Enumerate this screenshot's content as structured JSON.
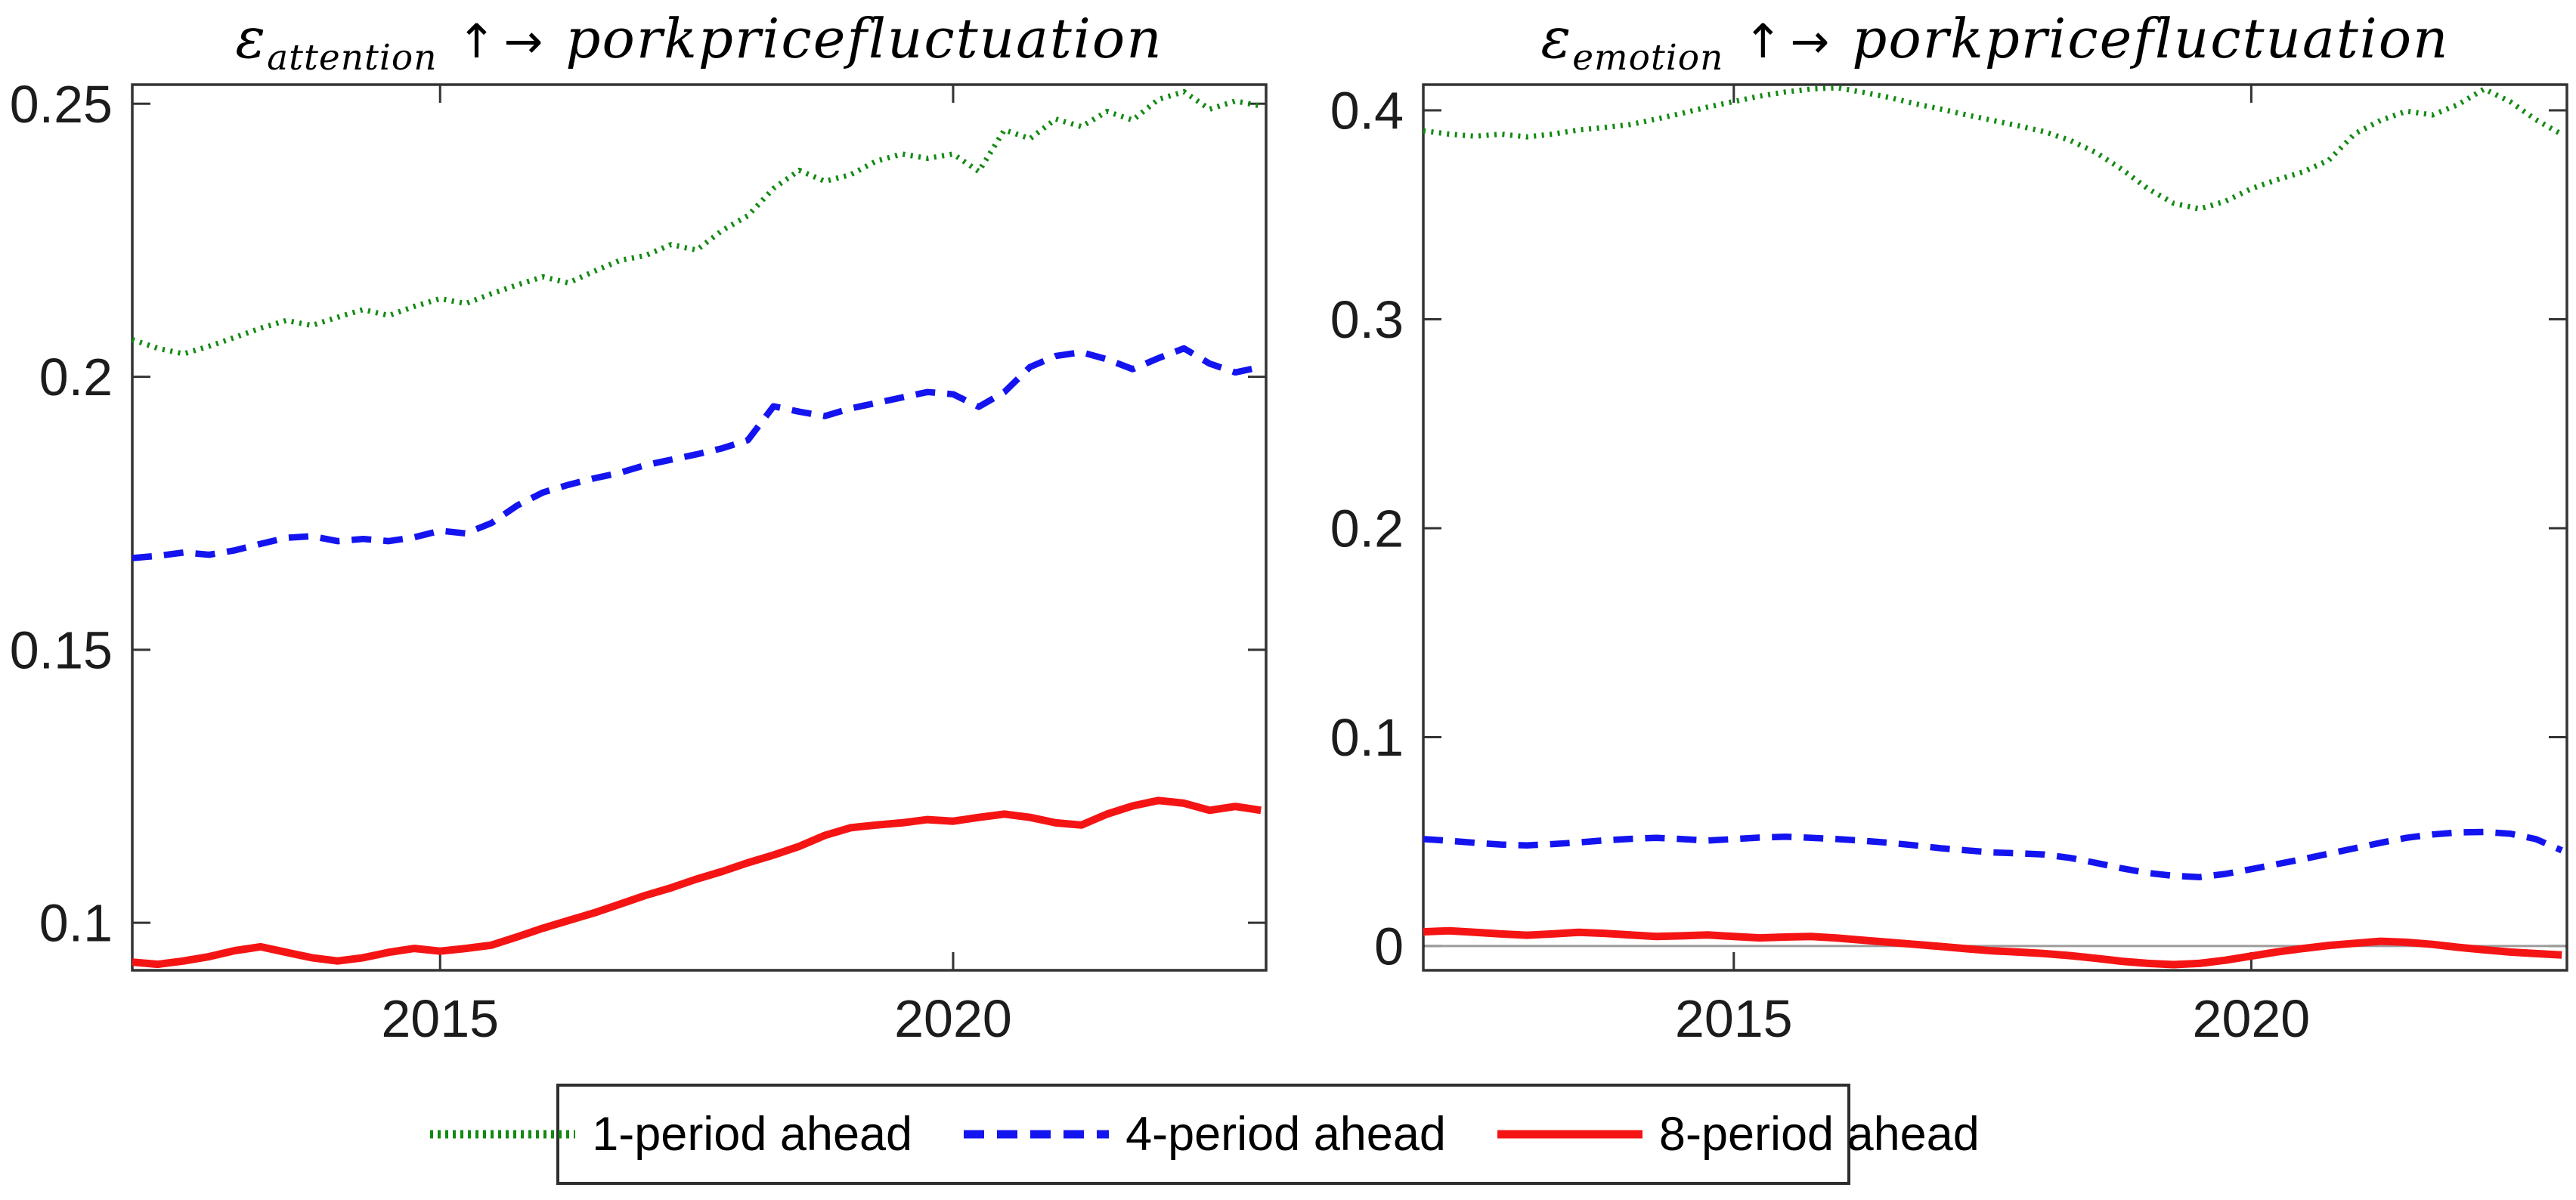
{
  "figure": {
    "background": "#ffffff",
    "axis_color": "#333333",
    "tick_label_color": "#1c1c1c",
    "zero_line_color": "#9c9c9c"
  },
  "legend": {
    "entries": [
      {
        "label": "1-period ahead",
        "color": "#128a12",
        "style": "dotted"
      },
      {
        "label": "4-period ahead",
        "color": "#1414f0",
        "style": "dashed"
      },
      {
        "label": "8-period ahead",
        "color": "#f51414",
        "style": "solid"
      }
    ]
  },
  "chart_data": [
    {
      "id": "attention",
      "type": "line",
      "title": {
        "symbol": "ε",
        "subscript": "attention",
        "arrow_up": "↑",
        "arrow_right": "→",
        "rest": "porkpricefluctuation"
      },
      "xlim": [
        2012,
        2023.05
      ],
      "ylim": [
        0.0913,
        0.2535
      ],
      "xticks": [
        2015,
        2020
      ],
      "xtick_labels": [
        "2015",
        "2020"
      ],
      "yticks": [
        0.1,
        0.15,
        0.2,
        0.25
      ],
      "ytick_labels": [
        "0.1",
        "0.15",
        "0.2",
        "0.25"
      ],
      "zero_line": false,
      "grid": false,
      "legend_position": "south-outside",
      "x": [
        2012,
        2012.25,
        2012.5,
        2012.75,
        2013,
        2013.25,
        2013.5,
        2013.75,
        2014,
        2014.25,
        2014.5,
        2014.75,
        2015,
        2015.25,
        2015.5,
        2015.75,
        2016,
        2016.25,
        2016.5,
        2016.75,
        2017,
        2017.25,
        2017.5,
        2017.75,
        2018,
        2018.25,
        2018.5,
        2018.75,
        2019,
        2019.25,
        2019.5,
        2019.75,
        2020,
        2020.25,
        2020.5,
        2020.75,
        2021,
        2021.25,
        2021.5,
        2021.75,
        2022,
        2022.25,
        2022.5,
        2022.75,
        2023
      ],
      "series": [
        {
          "name": "1-period ahead",
          "color": "#128a12",
          "style": "dotted",
          "values": [
            0.2068,
            0.2052,
            0.2042,
            0.2056,
            0.2072,
            0.2089,
            0.2103,
            0.2094,
            0.2109,
            0.2123,
            0.2112,
            0.2129,
            0.2143,
            0.2134,
            0.2152,
            0.2168,
            0.2183,
            0.2172,
            0.2193,
            0.2213,
            0.2222,
            0.2242,
            0.2232,
            0.2268,
            0.2295,
            0.2345,
            0.2378,
            0.2358,
            0.237,
            0.2395,
            0.2408,
            0.24,
            0.2408,
            0.2376,
            0.2452,
            0.2436,
            0.2472,
            0.2458,
            0.2486,
            0.247,
            0.2508,
            0.2522,
            0.249,
            0.2505,
            0.2496
          ]
        },
        {
          "name": "4-period ahead",
          "color": "#1414f0",
          "style": "dashed",
          "values": [
            0.1668,
            0.1672,
            0.1678,
            0.1674,
            0.1682,
            0.1694,
            0.1705,
            0.1708,
            0.1699,
            0.1703,
            0.1699,
            0.1706,
            0.1718,
            0.1713,
            0.1732,
            0.1764,
            0.1788,
            0.1802,
            0.1814,
            0.1824,
            0.1838,
            0.1848,
            0.1858,
            0.1869,
            0.1884,
            0.1946,
            0.1936,
            0.1928,
            0.1942,
            0.1952,
            0.1962,
            0.1972,
            0.1968,
            0.1945,
            0.1972,
            0.2018,
            0.2038,
            0.2045,
            0.2032,
            0.2014,
            0.2034,
            0.2052,
            0.2024,
            0.2008,
            0.2018
          ]
        },
        {
          "name": "8-period ahead",
          "color": "#f51414",
          "style": "solid",
          "values": [
            0.0928,
            0.0924,
            0.093,
            0.0938,
            0.0949,
            0.0956,
            0.0946,
            0.0936,
            0.093,
            0.0936,
            0.0946,
            0.0953,
            0.0948,
            0.0953,
            0.0959,
            0.0974,
            0.099,
            0.1004,
            0.1018,
            0.1034,
            0.105,
            0.1064,
            0.108,
            0.1094,
            0.111,
            0.1124,
            0.114,
            0.116,
            0.1174,
            0.1179,
            0.1183,
            0.1189,
            0.1186,
            0.1193,
            0.1199,
            0.1193,
            0.1183,
            0.1179,
            0.1199,
            0.1214,
            0.1224,
            0.1219,
            0.1206,
            0.1213,
            0.1206
          ]
        }
      ]
    },
    {
      "id": "emotion",
      "type": "line",
      "title": {
        "symbol": "ε",
        "subscript": "emotion",
        "arrow_up": "↑",
        "arrow_right": "→",
        "rest": "porkpricefluctuation"
      },
      "xlim": [
        2012,
        2023.05
      ],
      "ylim": [
        -0.0116,
        0.4123
      ],
      "xticks": [
        2015,
        2020
      ],
      "xtick_labels": [
        "2015",
        "2020"
      ],
      "yticks": [
        0,
        0.1,
        0.2,
        0.3,
        0.4
      ],
      "ytick_labels": [
        "0",
        "0.1",
        "0.2",
        "0.3",
        "0.4"
      ],
      "zero_line": true,
      "grid": false,
      "legend_position": "south-outside",
      "x": [
        2012,
        2012.25,
        2012.5,
        2012.75,
        2013,
        2013.25,
        2013.5,
        2013.75,
        2014,
        2014.25,
        2014.5,
        2014.75,
        2015,
        2015.25,
        2015.5,
        2015.75,
        2016,
        2016.25,
        2016.5,
        2016.75,
        2017,
        2017.25,
        2017.5,
        2017.75,
        2018,
        2018.25,
        2018.5,
        2018.75,
        2019,
        2019.25,
        2019.5,
        2019.75,
        2020,
        2020.25,
        2020.5,
        2020.75,
        2021,
        2021.25,
        2021.5,
        2021.75,
        2022,
        2022.25,
        2022.5,
        2022.75,
        2023
      ],
      "series": [
        {
          "name": "1-period ahead",
          "color": "#128a12",
          "style": "dotted",
          "values": [
            0.3902,
            0.3886,
            0.3876,
            0.3886,
            0.3873,
            0.3886,
            0.3906,
            0.3918,
            0.3932,
            0.3958,
            0.3986,
            0.4016,
            0.4042,
            0.4068,
            0.4088,
            0.4102,
            0.4108,
            0.4086,
            0.4062,
            0.4032,
            0.4006,
            0.3978,
            0.3952,
            0.3926,
            0.3898,
            0.3856,
            0.3798,
            0.3718,
            0.3625,
            0.3555,
            0.3528,
            0.3565,
            0.3625,
            0.3668,
            0.3705,
            0.3762,
            0.3888,
            0.3952,
            0.3996,
            0.3978,
            0.4028,
            0.4102,
            0.4042,
            0.3955,
            0.3885
          ]
        },
        {
          "name": "4-period ahead",
          "color": "#1414f0",
          "style": "dashed",
          "values": [
            0.0512,
            0.0504,
            0.0494,
            0.0486,
            0.0482,
            0.0488,
            0.0496,
            0.0506,
            0.0513,
            0.0518,
            0.0512,
            0.0505,
            0.0512,
            0.0519,
            0.0523,
            0.0518,
            0.0512,
            0.0504,
            0.0494,
            0.0482,
            0.0468,
            0.0458,
            0.0448,
            0.0444,
            0.0438,
            0.0422,
            0.0398,
            0.0372,
            0.035,
            0.0336,
            0.033,
            0.0345,
            0.0368,
            0.0392,
            0.0416,
            0.0442,
            0.0468,
            0.0494,
            0.0518,
            0.0534,
            0.0544,
            0.0546,
            0.0538,
            0.0512,
            0.0458
          ]
        },
        {
          "name": "8-period ahead",
          "color": "#f51414",
          "style": "solid",
          "values": [
            0.0068,
            0.0073,
            0.0066,
            0.0058,
            0.0052,
            0.0058,
            0.0066,
            0.0061,
            0.0053,
            0.0046,
            0.0049,
            0.0053,
            0.0046,
            0.0039,
            0.0043,
            0.0046,
            0.0038,
            0.0028,
            0.0018,
            0.0008,
            -0.0002,
            -0.0013,
            -0.0023,
            -0.0029,
            -0.0036,
            -0.0046,
            -0.0059,
            -0.0073,
            -0.0083,
            -0.0089,
            -0.0083,
            -0.0068,
            -0.0048,
            -0.0028,
            -0.0012,
            0.0003,
            0.0013,
            0.0023,
            0.0018,
            0.0008,
            -0.0006,
            -0.0018,
            -0.0029,
            -0.0036,
            -0.0043
          ]
        }
      ]
    }
  ]
}
